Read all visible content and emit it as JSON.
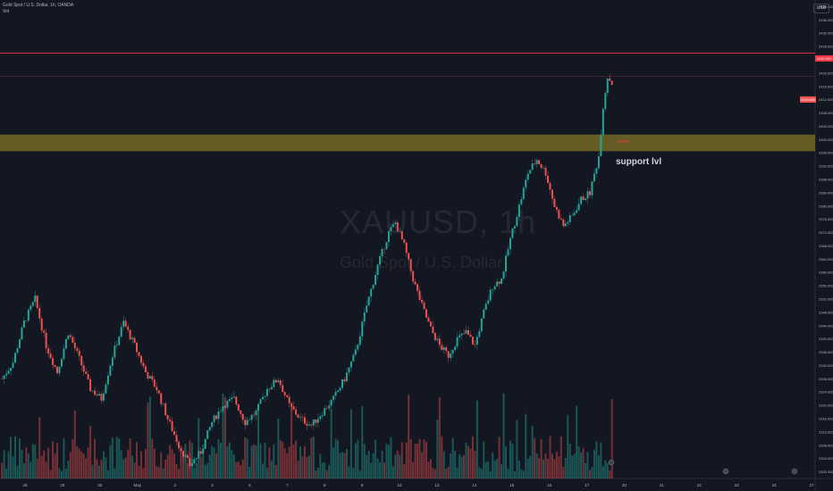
{
  "header": {
    "title": "Gold Spot / U.S. Dollar, 1h, OANDA",
    "volume_label": "Vol"
  },
  "currency_button": "USD",
  "watermark": {
    "symbol": "XAUUSD, 1h",
    "name": "Gold Spot / U.S. Dollar"
  },
  "annotation": {
    "text": "support lvl",
    "arrows": "^^^^^"
  },
  "price_labels": {
    "resistance": "2426.000",
    "current": "2419.000"
  },
  "colors": {
    "up": "#26a69a",
    "down": "#ef5350",
    "zone": "#6e6425",
    "resistance_line": "#f23645"
  },
  "chart_data": {
    "type": "candlestick",
    "y_ticks": [
      "2440.000",
      "2436.000",
      "2432.000",
      "2428.000",
      "2424.000",
      "2420.000",
      "2416.000",
      "2412.000",
      "2408.000",
      "2404.000",
      "2400.000",
      "2396.000",
      "2392.000",
      "2388.000",
      "2384.000",
      "2380.000",
      "2376.000",
      "2372.000",
      "2368.000",
      "2364.000",
      "2360.000",
      "2356.000",
      "2352.000",
      "2348.000",
      "2344.000",
      "2340.000",
      "2336.000",
      "2332.000",
      "2328.000",
      "2324.000",
      "2320.000",
      "2316.000",
      "2312.000",
      "2308.000",
      "2304.000",
      "2300.000"
    ],
    "ylim": [
      2298,
      2442
    ],
    "x_ticks": [
      "26",
      "29",
      "30",
      "May",
      "2",
      "3",
      "6",
      "7",
      "8",
      "9",
      "10",
      "13",
      "14",
      "15",
      "16",
      "17",
      "20",
      "21",
      "22",
      "23",
      "24",
      "27"
    ],
    "support_zone": [
      2396.5,
      2401.5
    ],
    "resistance_line": 2426,
    "current_price_line": 2419,
    "path_points": [
      [
        0,
        2328
      ],
      [
        5,
        2333
      ],
      [
        10,
        2345
      ],
      [
        15,
        2352
      ],
      [
        20,
        2338
      ],
      [
        25,
        2330
      ],
      [
        30,
        2342
      ],
      [
        35,
        2334
      ],
      [
        40,
        2325
      ],
      [
        45,
        2322
      ],
      [
        50,
        2335
      ],
      [
        55,
        2345
      ],
      [
        60,
        2338
      ],
      [
        65,
        2330
      ],
      [
        70,
        2325
      ],
      [
        75,
        2316
      ],
      [
        80,
        2308
      ],
      [
        85,
        2302
      ],
      [
        90,
        2306
      ],
      [
        95,
        2315
      ],
      [
        100,
        2320
      ],
      [
        105,
        2322
      ],
      [
        110,
        2315
      ],
      [
        115,
        2318
      ],
      [
        120,
        2325
      ],
      [
        125,
        2328
      ],
      [
        130,
        2320
      ],
      [
        135,
        2316
      ],
      [
        140,
        2314
      ],
      [
        145,
        2318
      ],
      [
        150,
        2322
      ],
      [
        155,
        2328
      ],
      [
        160,
        2336
      ],
      [
        165,
        2350
      ],
      [
        170,
        2362
      ],
      [
        175,
        2372
      ],
      [
        178,
        2375
      ],
      [
        182,
        2368
      ],
      [
        186,
        2358
      ],
      [
        190,
        2350
      ],
      [
        194,
        2343
      ],
      [
        198,
        2338
      ],
      [
        202,
        2335
      ],
      [
        206,
        2340
      ],
      [
        210,
        2342
      ],
      [
        214,
        2338
      ],
      [
        218,
        2348
      ],
      [
        222,
        2356
      ],
      [
        226,
        2358
      ],
      [
        230,
        2370
      ],
      [
        234,
        2380
      ],
      [
        238,
        2390
      ],
      [
        242,
        2394
      ],
      [
        246,
        2390
      ],
      [
        250,
        2380
      ],
      [
        254,
        2374
      ],
      [
        258,
        2377
      ],
      [
        262,
        2382
      ],
      [
        266,
        2384
      ],
      [
        270,
        2395
      ],
      [
        272,
        2410
      ],
      [
        274,
        2419
      ],
      [
        276,
        2417
      ]
    ]
  }
}
